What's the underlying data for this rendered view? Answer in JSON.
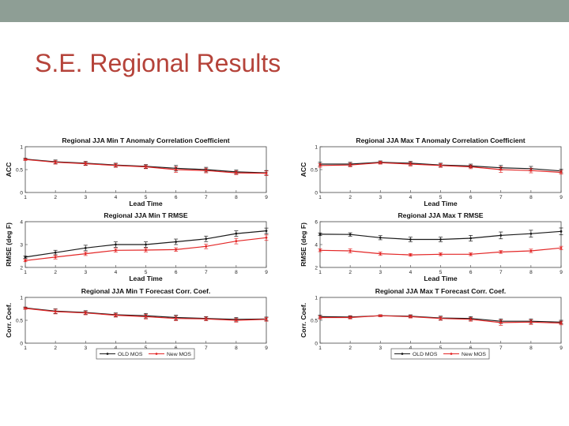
{
  "slide": {
    "title": "S.E. Regional Results"
  },
  "colors": {
    "old": "#1a1a1a",
    "new": "#e32626",
    "topbar": "#8e9e95",
    "title": "#b5433a"
  },
  "legend": {
    "old_label": "OLD MOS",
    "new_label": "New MOS"
  },
  "chart_data": [
    {
      "type": "line",
      "title": "Regional JJA Min T Anomaly Correlation Coefficient",
      "xlabel": "Lead Time",
      "ylabel": "ACC",
      "xlim": [
        1,
        9
      ],
      "ylim": [
        0,
        1
      ],
      "yticks": [
        "0",
        "0.5",
        "1"
      ],
      "x": [
        1,
        2,
        3,
        4,
        5,
        6,
        7,
        8,
        9
      ],
      "series": [
        {
          "name": "OLD MOS",
          "values": [
            0.73,
            0.67,
            0.64,
            0.6,
            0.57,
            0.53,
            0.5,
            0.45,
            0.43
          ],
          "error": [
            0.02,
            0.04,
            0.04,
            0.04,
            0.04,
            0.06,
            0.05,
            0.04,
            0.05
          ]
        },
        {
          "name": "New MOS",
          "values": [
            0.72,
            0.66,
            0.63,
            0.59,
            0.56,
            0.5,
            0.48,
            0.43,
            0.42
          ],
          "error": [
            0.02,
            0.04,
            0.04,
            0.04,
            0.04,
            0.06,
            0.05,
            0.04,
            0.05
          ]
        }
      ]
    },
    {
      "type": "line",
      "title": "Regional JJA Min T RMSE",
      "xlabel": "Lead Time",
      "ylabel": "RMSE (deg F)",
      "xlim": [
        1,
        9
      ],
      "ylim": [
        2,
        4
      ],
      "yticks": [
        "2",
        "3",
        "4"
      ],
      "x": [
        1,
        2,
        3,
        4,
        5,
        6,
        7,
        8,
        9
      ],
      "series": [
        {
          "name": "OLD MOS",
          "values": [
            2.45,
            2.65,
            2.85,
            3.0,
            3.0,
            3.12,
            3.25,
            3.48,
            3.6
          ],
          "error": [
            0.05,
            0.1,
            0.12,
            0.12,
            0.12,
            0.12,
            0.12,
            0.12,
            0.12
          ]
        },
        {
          "name": "New MOS",
          "values": [
            2.3,
            2.45,
            2.6,
            2.75,
            2.76,
            2.78,
            2.92,
            3.15,
            3.3
          ],
          "error": [
            0.05,
            0.08,
            0.08,
            0.08,
            0.08,
            0.08,
            0.1,
            0.12,
            0.12
          ]
        }
      ]
    },
    {
      "type": "line",
      "title": "Regional JJA Min T Forecast Corr. Coef.",
      "xlabel": "Lead Time",
      "ylabel": "Corr. Coef.",
      "xlim": [
        1,
        9
      ],
      "ylim": [
        0,
        1
      ],
      "yticks": [
        "0",
        "0.5",
        "1"
      ],
      "x": [
        1,
        2,
        3,
        4,
        5,
        6,
        7,
        8,
        9
      ],
      "series": [
        {
          "name": "OLD MOS",
          "values": [
            0.77,
            0.7,
            0.67,
            0.62,
            0.6,
            0.56,
            0.54,
            0.52,
            0.53
          ],
          "error": [
            0.02,
            0.05,
            0.04,
            0.04,
            0.05,
            0.05,
            0.04,
            0.04,
            0.04
          ]
        },
        {
          "name": "New MOS",
          "values": [
            0.76,
            0.69,
            0.66,
            0.61,
            0.58,
            0.54,
            0.53,
            0.5,
            0.52
          ],
          "error": [
            0.02,
            0.05,
            0.04,
            0.04,
            0.05,
            0.05,
            0.04,
            0.04,
            0.04
          ]
        }
      ]
    },
    {
      "type": "line",
      "title": "Regional JJA Max T Anomaly Correlation Coefficient",
      "xlabel": "Lead Time",
      "ylabel": "ACC",
      "xlim": [
        1,
        9
      ],
      "ylim": [
        0,
        1
      ],
      "yticks": [
        "0",
        "0.5",
        "1"
      ],
      "x": [
        1,
        2,
        3,
        4,
        5,
        6,
        7,
        8,
        9
      ],
      "series": [
        {
          "name": "OLD MOS",
          "values": [
            0.62,
            0.62,
            0.66,
            0.64,
            0.6,
            0.58,
            0.54,
            0.52,
            0.47
          ],
          "error": [
            0.04,
            0.04,
            0.03,
            0.04,
            0.04,
            0.04,
            0.05,
            0.05,
            0.04
          ]
        },
        {
          "name": "New MOS",
          "values": [
            0.59,
            0.6,
            0.65,
            0.62,
            0.59,
            0.56,
            0.5,
            0.48,
            0.44
          ],
          "error": [
            0.04,
            0.04,
            0.03,
            0.04,
            0.04,
            0.04,
            0.06,
            0.05,
            0.04
          ]
        }
      ]
    },
    {
      "type": "line",
      "title": "Regional JJA Max T RMSE",
      "xlabel": "Lead Time",
      "ylabel": "RMSE (deg F)",
      "xlim": [
        1,
        9
      ],
      "ylim": [
        2,
        6
      ],
      "yticks": [
        "2",
        "4",
        "6"
      ],
      "x": [
        1,
        2,
        3,
        4,
        5,
        6,
        7,
        8,
        9
      ],
      "series": [
        {
          "name": "OLD MOS",
          "values": [
            4.9,
            4.88,
            4.6,
            4.45,
            4.45,
            4.55,
            4.8,
            4.95,
            5.15
          ],
          "error": [
            0.12,
            0.15,
            0.18,
            0.2,
            0.2,
            0.25,
            0.3,
            0.3,
            0.3
          ]
        },
        {
          "name": "New MOS",
          "values": [
            3.5,
            3.45,
            3.2,
            3.1,
            3.15,
            3.15,
            3.35,
            3.45,
            3.7
          ],
          "error": [
            0.12,
            0.18,
            0.15,
            0.12,
            0.12,
            0.12,
            0.12,
            0.15,
            0.15
          ]
        }
      ]
    },
    {
      "type": "line",
      "title": "Regional JJA Max T Forecast Corr. Coef.",
      "xlabel": "Lead Time",
      "ylabel": "Corr. Coef.",
      "xlim": [
        1,
        9
      ],
      "ylim": [
        0,
        1
      ],
      "yticks": [
        "0",
        "0.5",
        "1"
      ],
      "x": [
        1,
        2,
        3,
        4,
        5,
        6,
        7,
        8,
        9
      ],
      "series": [
        {
          "name": "OLD MOS",
          "values": [
            0.58,
            0.57,
            0.6,
            0.59,
            0.55,
            0.54,
            0.48,
            0.48,
            0.46
          ],
          "error": [
            0.03,
            0.03,
            0.02,
            0.03,
            0.04,
            0.04,
            0.05,
            0.05,
            0.04
          ]
        },
        {
          "name": "New MOS",
          "values": [
            0.56,
            0.56,
            0.6,
            0.58,
            0.54,
            0.52,
            0.45,
            0.46,
            0.44
          ],
          "error": [
            0.03,
            0.03,
            0.02,
            0.03,
            0.04,
            0.04,
            0.06,
            0.05,
            0.04
          ]
        }
      ]
    }
  ]
}
